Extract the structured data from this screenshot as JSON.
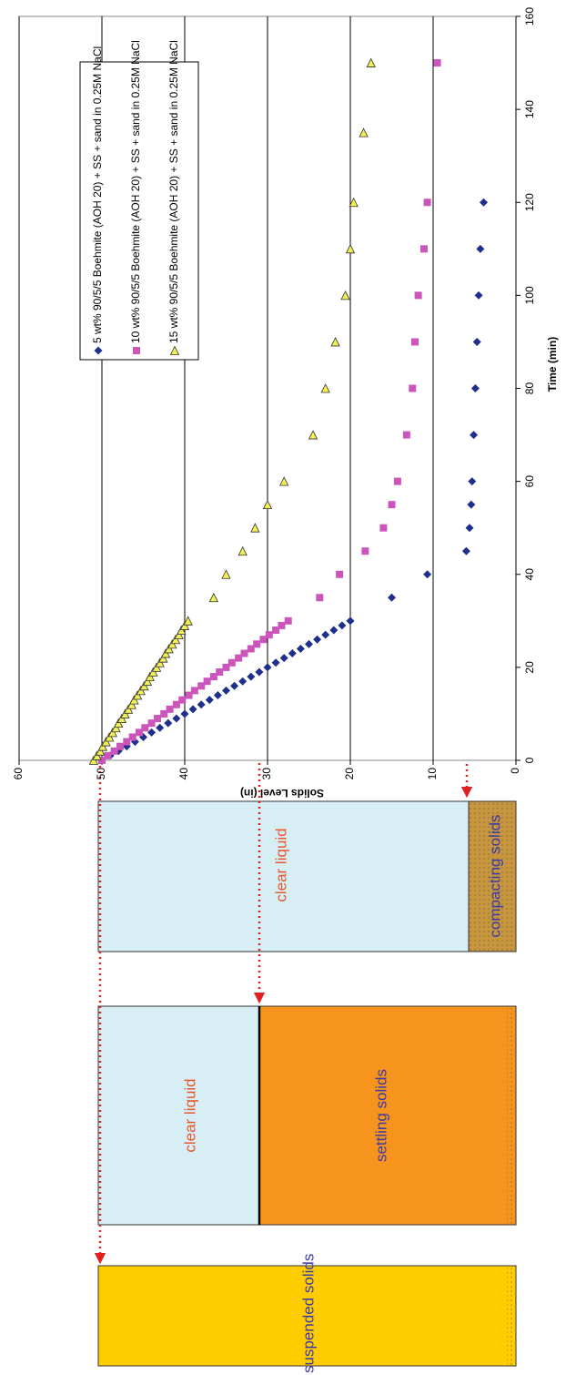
{
  "chart_data": {
    "type": "scatter",
    "x_label": "Time (min)",
    "y_label": "Solids Level (in)",
    "xlim": [
      0,
      160
    ],
    "xticks": [
      0,
      20,
      40,
      60,
      80,
      100,
      120,
      140,
      160
    ],
    "ylim": [
      0,
      60
    ],
    "yticks": [
      0,
      10,
      20,
      30,
      40,
      50,
      60
    ],
    "grid": true,
    "series": [
      {
        "name": "5 wt% 90/5/5 Boehmite (AOH 20) + SS + sand in 0.25M NaCl",
        "color": "#1f2f8c",
        "marker": "diamond",
        "x": [
          0,
          1,
          2,
          3,
          4,
          5,
          6,
          7,
          8,
          9,
          10,
          11,
          12,
          13,
          14,
          15,
          16,
          17,
          18,
          19,
          20,
          21,
          22,
          23,
          24,
          25,
          26,
          27,
          28,
          29,
          30,
          35,
          40,
          45,
          50,
          55,
          60,
          70,
          80,
          90,
          100,
          110,
          120
        ],
        "values": [
          50,
          49,
          48,
          47,
          46,
          45,
          44,
          43,
          42,
          41,
          40,
          39,
          38,
          37,
          36,
          35,
          34,
          33,
          32,
          31,
          30,
          29,
          28,
          27,
          26,
          25,
          24,
          23,
          22,
          21,
          20,
          15,
          10.7,
          6,
          5.6,
          5.4,
          5.3,
          5.1,
          4.9,
          4.7,
          4.5,
          4.3,
          3.9
        ]
      },
      {
        "name": "10 wt% 90/5/5 Boehmite (AOH 20) + SS + sand in 0.25M NaCl",
        "color": "#cc55bb",
        "marker": "square",
        "x": [
          0,
          1,
          2,
          3,
          4,
          5,
          6,
          7,
          8,
          9,
          10,
          11,
          12,
          13,
          14,
          15,
          16,
          17,
          18,
          19,
          20,
          21,
          22,
          23,
          24,
          25,
          26,
          27,
          28,
          29,
          30,
          35,
          40,
          45,
          50,
          55,
          60,
          70,
          80,
          90,
          100,
          110,
          120,
          150
        ],
        "values": [
          50,
          49.3,
          48.5,
          47.8,
          47,
          46.3,
          45.5,
          44.8,
          44,
          43.3,
          42.5,
          41.8,
          41,
          40.3,
          39.5,
          38.8,
          38,
          37.3,
          36.5,
          35.8,
          35,
          34.3,
          33.5,
          32.8,
          32,
          31.3,
          30.5,
          29.8,
          29,
          28.3,
          27.5,
          23.7,
          21.3,
          18.2,
          16,
          15,
          14.3,
          13.2,
          12.5,
          12.2,
          11.8,
          11.1,
          10.7,
          9.5
        ]
      },
      {
        "name": "15 wt% 90/5/5 Boehmite (AOH 20) + SS + sand in 0.25M NaCl",
        "color": "#f2ee55",
        "marker": "triangle",
        "x": [
          0,
          1,
          2,
          3,
          4,
          5,
          6,
          7,
          8,
          9,
          10,
          11,
          12,
          13,
          14,
          15,
          16,
          17,
          18,
          19,
          20,
          21,
          22,
          23,
          24,
          25,
          26,
          27,
          28,
          29,
          30,
          35,
          40,
          45,
          50,
          55,
          60,
          70,
          80,
          90,
          100,
          110,
          120,
          135,
          150
        ],
        "values": [
          51,
          50.6,
          50.2,
          49.9,
          49.5,
          49.1,
          48.7,
          48.3,
          48,
          47.6,
          47.2,
          46.8,
          46.4,
          46.1,
          45.7,
          45.3,
          44.9,
          44.5,
          44.2,
          43.8,
          43.4,
          43,
          42.6,
          42.3,
          41.9,
          41.5,
          41.1,
          40.7,
          40.4,
          40,
          39.6,
          36.5,
          35,
          33,
          31.5,
          30,
          28,
          24.5,
          23,
          21.8,
          20.6,
          20,
          19.6,
          18.4,
          17.5
        ]
      }
    ]
  },
  "diagram": {
    "labels": [
      "clear liquid",
      "compacting solids",
      "clear liquid",
      "settling solids",
      "suspended solids"
    ]
  }
}
